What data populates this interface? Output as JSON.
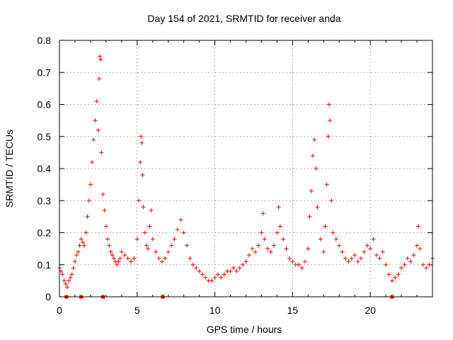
{
  "chart_data": {
    "type": "scatter",
    "title": "Day 154 of 2021, SRMTID for receiver anda",
    "xlabel": "GPS time / hours",
    "ylabel": "SRMTID / TECUs",
    "xlim": [
      0,
      24
    ],
    "ylim": [
      0,
      0.8
    ],
    "xticks": [
      "0",
      "5",
      "10",
      "15",
      "20"
    ],
    "yticks": [
      "0",
      "0.1",
      "0.2",
      "0.3",
      "0.4",
      "0.5",
      "0.6",
      "0.7",
      "0.8"
    ],
    "grid": true,
    "marker": "plus",
    "color": "#ff0000",
    "series": [
      {
        "name": "SRMTID",
        "points": [
          [
            0.0,
            0.09
          ],
          [
            0.1,
            0.08
          ],
          [
            0.2,
            0.07
          ],
          [
            0.3,
            0.05
          ],
          [
            0.4,
            0.04
          ],
          [
            0.5,
            0.03
          ],
          [
            0.6,
            0.05
          ],
          [
            0.7,
            0.06
          ],
          [
            0.8,
            0.07
          ],
          [
            0.9,
            0.09
          ],
          [
            1.0,
            0.11
          ],
          [
            1.1,
            0.13
          ],
          [
            1.2,
            0.14
          ],
          [
            1.3,
            0.16
          ],
          [
            1.4,
            0.18
          ],
          [
            1.5,
            0.17
          ],
          [
            1.6,
            0.16
          ],
          [
            1.7,
            0.2
          ],
          [
            1.8,
            0.25
          ],
          [
            1.9,
            0.3
          ],
          [
            2.0,
            0.35
          ],
          [
            2.1,
            0.42
          ],
          [
            2.2,
            0.49
          ],
          [
            2.3,
            0.55
          ],
          [
            2.4,
            0.61
          ],
          [
            2.5,
            0.52
          ],
          [
            2.55,
            0.68
          ],
          [
            2.6,
            0.75
          ],
          [
            2.65,
            0.74
          ],
          [
            2.7,
            0.45
          ],
          [
            2.8,
            0.32
          ],
          [
            2.9,
            0.27
          ],
          [
            3.0,
            0.22
          ],
          [
            3.1,
            0.18
          ],
          [
            3.2,
            0.16
          ],
          [
            3.3,
            0.14
          ],
          [
            3.4,
            0.13
          ],
          [
            3.5,
            0.12
          ],
          [
            3.6,
            0.11
          ],
          [
            3.7,
            0.1
          ],
          [
            3.8,
            0.11
          ],
          [
            3.9,
            0.12
          ],
          [
            4.0,
            0.14
          ],
          [
            4.2,
            0.13
          ],
          [
            4.4,
            0.12
          ],
          [
            4.6,
            0.11
          ],
          [
            4.8,
            0.12
          ],
          [
            5.0,
            0.18
          ],
          [
            5.1,
            0.3
          ],
          [
            5.2,
            0.42
          ],
          [
            5.25,
            0.5
          ],
          [
            5.3,
            0.48
          ],
          [
            5.35,
            0.38
          ],
          [
            5.4,
            0.28
          ],
          [
            5.5,
            0.2
          ],
          [
            5.6,
            0.16
          ],
          [
            5.7,
            0.15
          ],
          [
            5.8,
            0.22
          ],
          [
            5.9,
            0.27
          ],
          [
            6.0,
            0.18
          ],
          [
            6.2,
            0.14
          ],
          [
            6.4,
            0.12
          ],
          [
            6.6,
            0.11
          ],
          [
            6.8,
            0.12
          ],
          [
            7.0,
            0.14
          ],
          [
            7.2,
            0.16
          ],
          [
            7.4,
            0.18
          ],
          [
            7.6,
            0.21
          ],
          [
            7.8,
            0.24
          ],
          [
            8.0,
            0.2
          ],
          [
            8.2,
            0.16
          ],
          [
            8.4,
            0.12
          ],
          [
            8.6,
            0.1
          ],
          [
            8.8,
            0.09
          ],
          [
            9.0,
            0.08
          ],
          [
            9.2,
            0.07
          ],
          [
            9.4,
            0.06
          ],
          [
            9.6,
            0.05
          ],
          [
            9.8,
            0.05
          ],
          [
            10.0,
            0.06
          ],
          [
            10.2,
            0.07
          ],
          [
            10.4,
            0.06
          ],
          [
            10.6,
            0.07
          ],
          [
            10.8,
            0.08
          ],
          [
            11.0,
            0.08
          ],
          [
            11.2,
            0.09
          ],
          [
            11.4,
            0.08
          ],
          [
            11.6,
            0.09
          ],
          [
            11.8,
            0.1
          ],
          [
            12.0,
            0.11
          ],
          [
            12.2,
            0.13
          ],
          [
            12.4,
            0.15
          ],
          [
            12.6,
            0.14
          ],
          [
            12.8,
            0.16
          ],
          [
            13.0,
            0.2
          ],
          [
            13.1,
            0.26
          ],
          [
            13.2,
            0.18
          ],
          [
            13.4,
            0.15
          ],
          [
            13.6,
            0.14
          ],
          [
            13.8,
            0.16
          ],
          [
            14.0,
            0.2
          ],
          [
            14.1,
            0.28
          ],
          [
            14.2,
            0.22
          ],
          [
            14.4,
            0.18
          ],
          [
            14.6,
            0.15
          ],
          [
            14.8,
            0.12
          ],
          [
            15.0,
            0.11
          ],
          [
            15.2,
            0.1
          ],
          [
            15.4,
            0.1
          ],
          [
            15.6,
            0.09
          ],
          [
            15.8,
            0.11
          ],
          [
            16.0,
            0.15
          ],
          [
            16.1,
            0.25
          ],
          [
            16.2,
            0.33
          ],
          [
            16.3,
            0.44
          ],
          [
            16.4,
            0.49
          ],
          [
            16.5,
            0.4
          ],
          [
            16.6,
            0.28
          ],
          [
            16.8,
            0.18
          ],
          [
            17.0,
            0.14
          ],
          [
            17.1,
            0.22
          ],
          [
            17.2,
            0.35
          ],
          [
            17.3,
            0.5
          ],
          [
            17.35,
            0.6
          ],
          [
            17.4,
            0.55
          ],
          [
            17.5,
            0.3
          ],
          [
            17.6,
            0.2
          ],
          [
            17.8,
            0.18
          ],
          [
            18.0,
            0.16
          ],
          [
            18.2,
            0.14
          ],
          [
            18.4,
            0.12
          ],
          [
            18.6,
            0.11
          ],
          [
            18.8,
            0.12
          ],
          [
            19.0,
            0.13
          ],
          [
            19.2,
            0.11
          ],
          [
            19.4,
            0.12
          ],
          [
            19.6,
            0.14
          ],
          [
            19.8,
            0.16
          ],
          [
            20.0,
            0.15
          ],
          [
            20.2,
            0.18
          ],
          [
            20.4,
            0.13
          ],
          [
            20.6,
            0.12
          ],
          [
            20.8,
            0.14
          ],
          [
            21.0,
            0.1
          ],
          [
            21.2,
            0.07
          ],
          [
            21.4,
            0.05
          ],
          [
            21.6,
            0.06
          ],
          [
            21.8,
            0.07
          ],
          [
            22.0,
            0.09
          ],
          [
            22.2,
            0.1
          ],
          [
            22.4,
            0.12
          ],
          [
            22.6,
            0.11
          ],
          [
            22.8,
            0.13
          ],
          [
            23.0,
            0.16
          ],
          [
            23.1,
            0.22
          ],
          [
            23.2,
            0.15
          ],
          [
            23.4,
            0.1
          ],
          [
            23.6,
            0.09
          ],
          [
            23.8,
            0.1
          ],
          [
            24.0,
            0.12
          ]
        ]
      }
    ],
    "gap_markers_x": [
      0.45,
      1.4,
      2.8,
      6.65,
      21.4
    ]
  }
}
